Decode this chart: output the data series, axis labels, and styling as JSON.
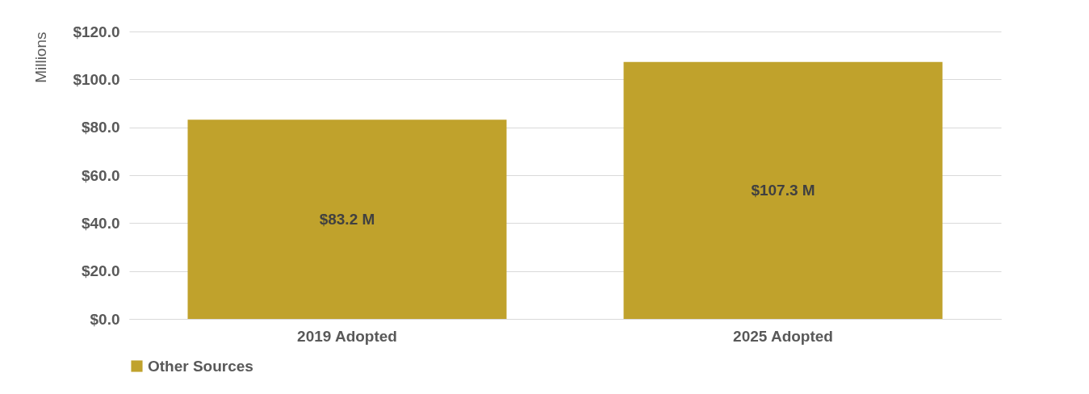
{
  "chart_data": {
    "type": "bar",
    "ylabel": "Millions",
    "categories": [
      "2019 Adopted",
      "2025 Adopted"
    ],
    "series": [
      {
        "name": "Other Sources",
        "color": "#c0a22c",
        "values": [
          83.2,
          107.3
        ],
        "value_labels": [
          "$83.2 M",
          "$107.3 M"
        ]
      }
    ],
    "ylim": [
      0,
      120
    ],
    "yticks": [
      {
        "value": 0,
        "label": "$0.0"
      },
      {
        "value": 20,
        "label": "$20.0"
      },
      {
        "value": 40,
        "label": "$40.0"
      },
      {
        "value": 60,
        "label": "$60.0"
      },
      {
        "value": 80,
        "label": "$80.0"
      },
      {
        "value": 100,
        "label": "$100.0"
      },
      {
        "value": 120,
        "label": "$120.0"
      }
    ],
    "grid": "y",
    "legend": "bottom"
  }
}
